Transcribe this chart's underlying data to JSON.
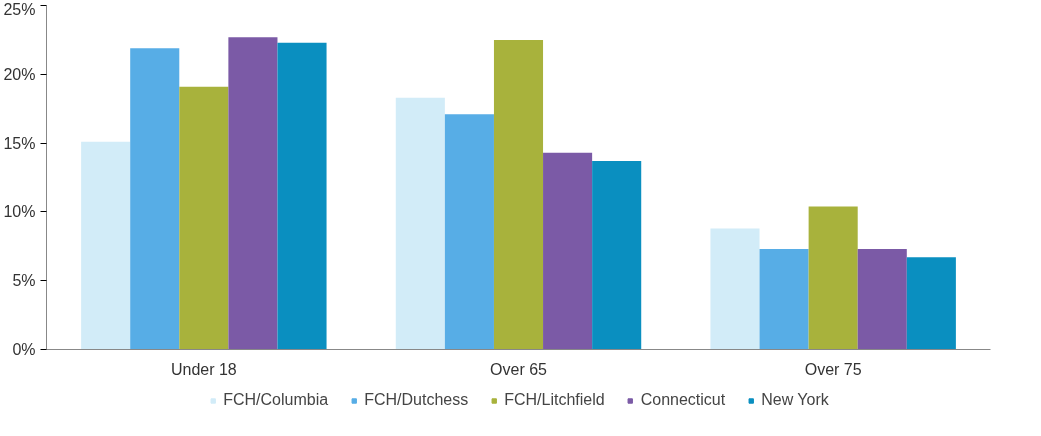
{
  "chart_data": {
    "type": "bar",
    "categories": [
      "Under 18",
      "Over 65",
      "Over 75"
    ],
    "series": [
      {
        "name": "FCH/Columbia",
        "color": "#d2ecf8",
        "values": [
          15.1,
          18.3,
          8.8
        ]
      },
      {
        "name": "FCH/Dutchess",
        "color": "#57ade6",
        "values": [
          21.9,
          17.1,
          7.3
        ]
      },
      {
        "name": "FCH/Litchfield",
        "color": "#a8b23c",
        "values": [
          19.1,
          22.5,
          10.4
        ]
      },
      {
        "name": "Connecticut",
        "color": "#7b5aa6",
        "values": [
          22.7,
          14.3,
          7.3
        ]
      },
      {
        "name": "New York",
        "color": "#0a8fc0",
        "values": [
          22.3,
          13.7,
          6.7
        ]
      }
    ],
    "ylim": [
      0,
      25
    ],
    "yticks": [
      {
        "value": 0,
        "label": "0%"
      },
      {
        "value": 5,
        "label": "5%"
      },
      {
        "value": 10,
        "label": "10%"
      },
      {
        "value": 15,
        "label": "15%"
      },
      {
        "value": 20,
        "label": "20%"
      },
      {
        "value": 25,
        "label": "25%"
      }
    ],
    "grid": false,
    "legend": "bottom"
  }
}
